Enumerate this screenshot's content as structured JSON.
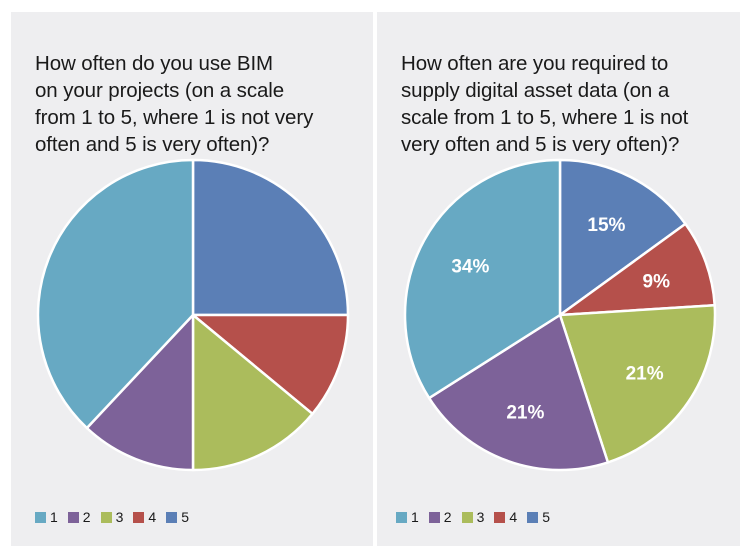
{
  "colors": {
    "1": "#67a9c3",
    "2": "#7d6299",
    "3": "#abbc5c",
    "4": "#b5504b",
    "5": "#5b7fb6",
    "panel_bg": "#eeeef0",
    "slice_border": "#ffffff"
  },
  "chart_data": [
    {
      "type": "pie",
      "title": "How often do you use BIM on your projects (on a scale from 1 to 5, where 1 is not very often and 5 is very often)?",
      "title_lines": [
        "How often do you use BIM",
        "on your projects (on a scale",
        "from 1 to 5, where 1 is not very",
        "often and 5 is very often)?"
      ],
      "categories": [
        "1",
        "2",
        "3",
        "4",
        "5"
      ],
      "values": [
        38,
        12,
        14,
        11,
        25
      ],
      "unit": "percent (estimated, no data labels shown)",
      "show_labels": false,
      "start_angle": "12 o'clock, category 5 first, clockwise",
      "legend": {
        "entries": [
          "1",
          "2",
          "3",
          "4",
          "5"
        ],
        "position": "bottom-left"
      }
    },
    {
      "type": "pie",
      "title": "How often are you required to supply digital asset data (on a scale from 1 to 5, where 1 is not very often and 5 is very often)?",
      "title_lines": [
        "How often are you required to",
        "supply digital asset data (on a",
        "scale from 1 to 5, where 1 is not",
        "very often and 5 is very often)?"
      ],
      "categories": [
        "1",
        "2",
        "3",
        "4",
        "5"
      ],
      "values": [
        34,
        21,
        21,
        9,
        15
      ],
      "labels": [
        "34%",
        "21%",
        "21%",
        "9%",
        "15%"
      ],
      "unit": "percent",
      "show_labels": true,
      "start_angle": "12 o'clock, category 5 first, clockwise",
      "legend": {
        "entries": [
          "1",
          "2",
          "3",
          "4",
          "5"
        ],
        "position": "bottom-left"
      }
    }
  ]
}
